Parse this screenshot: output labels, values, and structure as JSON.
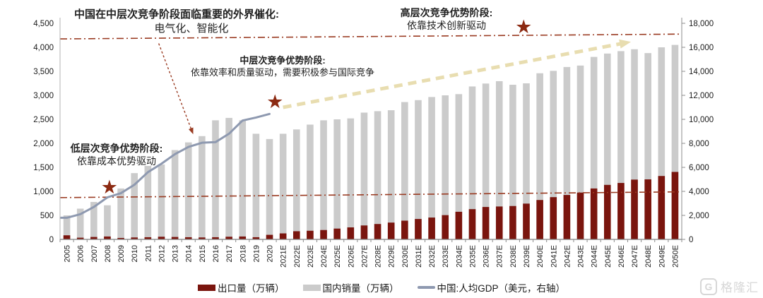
{
  "figure": {
    "annotations": {
      "catalyst": {
        "title": "中国在中层次竞争阶段面临重要的外界催化:",
        "body": "电气化、智能化"
      },
      "low": {
        "title": "低层次竞争优势阶段:",
        "body": "依靠成本优势驱动"
      },
      "mid": {
        "title": "中层次竞争优势阶段:",
        "body": "依靠效率和质量驱动，需要积极参与国际竞争"
      },
      "high": {
        "title": "高层次竞争优势阶段:",
        "body": "依靠技术创新驱动"
      }
    },
    "watermark": {
      "logo_letter": "G",
      "text": "格隆汇"
    }
  },
  "chart_data": {
    "type": "bar",
    "categories": [
      "2005",
      "2006",
      "2007",
      "2008",
      "2009",
      "2010",
      "2011",
      "2012",
      "2013",
      "2014",
      "2015",
      "2016",
      "2017",
      "2018",
      "2019",
      "2020",
      "2021E",
      "2022E",
      "2023E",
      "2024E",
      "2025E",
      "2026E",
      "2027E",
      "2028E",
      "2029E",
      "2030E",
      "2031E",
      "2032E",
      "2033E",
      "2034E",
      "2035E",
      "2036E",
      "2037E",
      "2038E",
      "2039E",
      "2040E",
      "2041E",
      "2042E",
      "2043E",
      "2044E",
      "2045E",
      "2046E",
      "2047E",
      "2048E",
      "2049E",
      "2050E"
    ],
    "series": [
      {
        "name": "出口量（万辆）",
        "type": "bar",
        "axis": "left",
        "color": "#7a150e",
        "values": [
          85,
          35,
          50,
          60,
          30,
          40,
          45,
          55,
          50,
          45,
          40,
          45,
          55,
          60,
          45,
          95,
          125,
          170,
          180,
          195,
          225,
          250,
          290,
          320,
          350,
          390,
          425,
          455,
          505,
          575,
          630,
          675,
          685,
          695,
          745,
          820,
          880,
          925,
          975,
          1060,
          1135,
          1175,
          1245,
          1250,
          1320,
          1405
        ]
      },
      {
        "name": "国内销量（万辆）",
        "type": "bar",
        "axis": "left",
        "color": "#cbcbcb",
        "values": [
          500,
          640,
          780,
          710,
          1060,
          1380,
          1530,
          1560,
          1860,
          2020,
          2150,
          2480,
          2530,
          2480,
          2200,
          2090,
          2200,
          2290,
          2390,
          2480,
          2500,
          2520,
          2640,
          2670,
          2690,
          2860,
          2900,
          2965,
          3000,
          3025,
          3185,
          3245,
          3295,
          3220,
          3250,
          3460,
          3510,
          3590,
          3620,
          3800,
          3870,
          3920,
          3960,
          3880,
          4000,
          4050
        ]
      },
      {
        "name": "中国:人均GDP（美元，右轴）",
        "type": "line",
        "axis": "right",
        "color": "#8e99b0",
        "values": [
          1800,
          2100,
          2700,
          3500,
          3850,
          4550,
          5600,
          6300,
          7100,
          7700,
          8050,
          8100,
          8800,
          9900,
          10150,
          10450,
          null,
          null,
          null,
          null,
          null,
          null,
          null,
          null,
          null,
          null,
          null,
          null,
          null,
          null,
          null,
          null,
          null,
          null,
          null,
          null,
          null,
          null,
          null,
          null,
          null,
          null,
          null,
          null,
          null,
          null
        ]
      }
    ],
    "left_axis": {
      "min": 0,
      "max": 4500,
      "step": 500
    },
    "right_axis": {
      "min": 0,
      "max": 18000,
      "step": 2000
    },
    "grid": "off",
    "legend_position": "bottom",
    "reference_lines": [
      {
        "axis": "right",
        "start_value": 16700,
        "end_value": 17100,
        "style": "dash-dot",
        "color": "#9a3b22"
      },
      {
        "axis": "right",
        "start_value": 3480,
        "end_value": 3960,
        "style": "dash-dot",
        "color": "#9a3b22"
      }
    ],
    "stars": [
      {
        "near_year": "2008",
        "axis": "left",
        "value": 1090,
        "x_offset_slots": 0.15,
        "color": "#8c2a12"
      },
      {
        "near_year": "2020",
        "axis": "left",
        "value": 2870,
        "x_offset_slots": 0.4,
        "color": "#8c2a12"
      },
      {
        "near_year": "2039E",
        "axis": "left",
        "value": 4430,
        "x_offset_slots": -0.2,
        "color": "#8c2a12"
      }
    ],
    "arrows": [
      {
        "name": "catalyst-arrow",
        "color": "#9a3b22",
        "dash": "3 3",
        "width": 1.4,
        "from": {
          "year": "2012",
          "axis": "left",
          "value": 4080,
          "x_offset_slots": -0.2
        },
        "to": {
          "year": "2014",
          "axis": "left",
          "value": 2300,
          "x_offset_slots": 0.2
        }
      },
      {
        "name": "gdp-projection-arrow",
        "color": "#e8ddb0",
        "dash": "12 8",
        "width": 5,
        "from": {
          "year": "2021E",
          "axis": "right",
          "value": 11000,
          "x_offset_slots": 0
        },
        "to": {
          "year": "2046E",
          "axis": "right",
          "value": 16300,
          "x_offset_slots": 0
        }
      }
    ]
  }
}
